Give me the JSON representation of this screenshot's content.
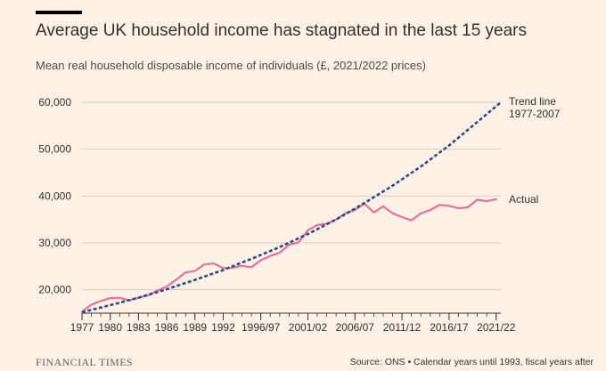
{
  "header": {
    "title": "Average UK household income has stagnated in the last 15 years",
    "subtitle": "Mean real household disposable income of individuals (£, 2021/2022 prices)"
  },
  "footer": {
    "logo_text": "FINANCIAL TIMES",
    "source": "Source: ONS • Calendar years until 1993, fiscal years after"
  },
  "colors": {
    "background": "#fff1e5",
    "actual_line": "#e2739a",
    "trend_line": "#2e4b86",
    "grid": "#d9cbc0",
    "axis": "#33302e",
    "text": "#33302e"
  },
  "chart_data": {
    "type": "line",
    "title": "Average UK household income has stagnated in the last 15 years",
    "subtitle": "Mean real household disposable income of individuals (£, 2021/2022 prices)",
    "xlabel": "",
    "ylabel": "",
    "x_tick_labels": [
      "1977",
      "1980",
      "1983",
      "1986",
      "1989",
      "1992",
      "1996/97",
      "2001/02",
      "2006/07",
      "2011/12",
      "2016/17",
      "2021/22"
    ],
    "x_tick_positions": [
      1977,
      1980,
      1983,
      1986,
      1989,
      1992,
      1996,
      2001,
      2006,
      2011,
      2016,
      2021
    ],
    "xlim": [
      1977,
      2021.5
    ],
    "y_ticks": [
      20000,
      30000,
      40000,
      50000,
      60000
    ],
    "y_tick_labels": [
      "20,000",
      "30,000",
      "40,000",
      "50,000",
      "60,000"
    ],
    "ylim": [
      15000,
      60000
    ],
    "grid": "horizontal",
    "series": [
      {
        "name": "Actual",
        "style": "solid",
        "x": [
          1977,
          1978,
          1979,
          1980,
          1981,
          1982,
          1983,
          1984,
          1985,
          1986,
          1987,
          1988,
          1989,
          1990,
          1991,
          1992,
          1993,
          1994,
          1995,
          1996,
          1997,
          1998,
          1999,
          2000,
          2001,
          2002,
          2003,
          2004,
          2005,
          2006,
          2007,
          2008,
          2009,
          2010,
          2011,
          2012,
          2013,
          2014,
          2015,
          2016,
          2017,
          2018,
          2019,
          2020,
          2021
        ],
        "values": [
          15300,
          16800,
          17600,
          18200,
          18300,
          17700,
          18300,
          18800,
          19800,
          20700,
          22100,
          23700,
          24000,
          25400,
          25600,
          24600,
          24700,
          25100,
          24800,
          26300,
          27200,
          27900,
          29600,
          30100,
          32700,
          33800,
          34100,
          35000,
          36300,
          37000,
          38400,
          36500,
          37800,
          36300,
          35500,
          34800,
          36300,
          37000,
          38100,
          37900,
          37400,
          37600,
          39200,
          38900,
          39300
        ]
      },
      {
        "name": "Trend line 1977-2007",
        "style": "dashed",
        "x": [
          1977,
          1980,
          1983,
          1986,
          1989,
          1992,
          1995,
          1998,
          2001,
          2004,
          2007,
          2010,
          2013,
          2016,
          2019,
          2021.5
        ],
        "values": [
          15200,
          16700,
          18300,
          20100,
          22100,
          24200,
          26600,
          29100,
          31900,
          35000,
          38500,
          42200,
          46300,
          50800,
          55800,
          60000
        ]
      }
    ],
    "annotations": [
      {
        "text": "Trend line",
        "series": "Trend line 1977-2007"
      },
      {
        "text": "1977-2007",
        "series": "Trend line 1977-2007"
      },
      {
        "text": "Actual",
        "series": "Actual"
      }
    ]
  }
}
